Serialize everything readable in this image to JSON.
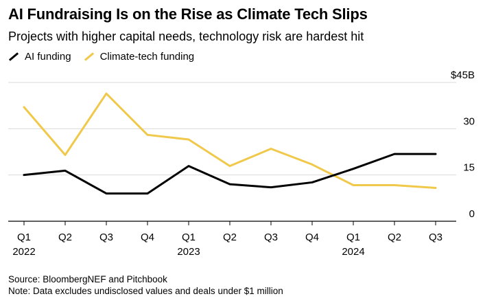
{
  "title": "AI Fundraising Is on the Rise as Climate Tech Slips",
  "subtitle": "Projects with higher capital needs, technology risk are hardest hit",
  "source": "Source: BloombergNEF and Pitchbook",
  "note": "Note: Data excludes undisclosed values and deals under $1 million",
  "colors": {
    "ai": "#000000",
    "climate": "#f0c84a",
    "grid": "#d9d9d9"
  },
  "chart_data": {
    "type": "line",
    "x": [
      "Q1 2022",
      "Q2 2022",
      "Q3 2022",
      "Q4 2022",
      "Q1 2023",
      "Q2 2023",
      "Q3 2023",
      "Q4 2023",
      "Q1 2024",
      "Q2 2024",
      "Q3 2024"
    ],
    "x_tick_labels": [
      {
        "q": "Q1",
        "year": "2022"
      },
      {
        "q": "Q2",
        "year": ""
      },
      {
        "q": "Q3",
        "year": ""
      },
      {
        "q": "Q4",
        "year": ""
      },
      {
        "q": "Q1",
        "year": "2023"
      },
      {
        "q": "Q2",
        "year": ""
      },
      {
        "q": "Q3",
        "year": ""
      },
      {
        "q": "Q4",
        "year": ""
      },
      {
        "q": "Q1",
        "year": "2024"
      },
      {
        "q": "Q2",
        "year": ""
      },
      {
        "q": "Q3",
        "year": ""
      }
    ],
    "series": [
      {
        "name": "AI funding",
        "values": [
          15,
          16.4,
          9,
          9,
          17.9,
          12,
          11,
          12.6,
          17,
          21.8,
          21.8
        ]
      },
      {
        "name": "Climate-tech funding",
        "values": [
          37,
          21.5,
          41.4,
          28,
          26.5,
          17.9,
          23.5,
          18.4,
          11.7,
          11.7,
          10.8
        ]
      }
    ],
    "y_ticks": [
      {
        "value": 45,
        "label": "$45B"
      },
      {
        "value": 30,
        "label": "30"
      },
      {
        "value": 15,
        "label": "15"
      },
      {
        "value": 0,
        "label": "0"
      }
    ],
    "ylim": [
      0,
      45
    ],
    "grid": true,
    "legend_position": "top-left"
  }
}
